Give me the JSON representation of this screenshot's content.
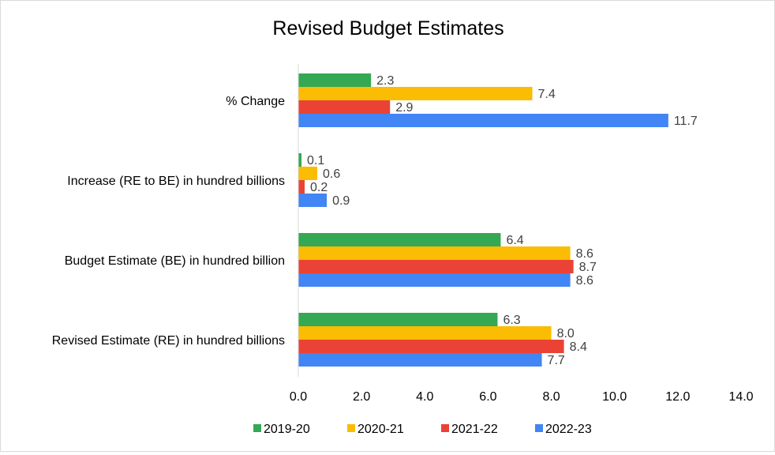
{
  "chart_data": {
    "type": "bar",
    "orientation": "horizontal",
    "title": "Revised Budget Estimates",
    "categories": [
      "% Change",
      "Increase (RE to BE) in hundred billions",
      "Budget Estimate (BE) in hundred billion",
      "Revised Estimate (RE) in hundred billions"
    ],
    "series": [
      {
        "name": "2019-20",
        "color": "#34A853",
        "values": [
          2.3,
          0.1,
          6.4,
          6.3
        ],
        "labels": [
          "2.3",
          "0.1",
          "6.4",
          "6.3"
        ]
      },
      {
        "name": "2020-21",
        "color": "#FBBC04",
        "values": [
          7.4,
          0.6,
          8.6,
          8.0
        ],
        "labels": [
          "7.4",
          "0.6",
          "8.6",
          "8.0"
        ]
      },
      {
        "name": "2021-22",
        "color": "#EA4335",
        "values": [
          2.9,
          0.2,
          8.7,
          8.4
        ],
        "labels": [
          "2.9",
          "0.2",
          "8.7",
          "8.4"
        ]
      },
      {
        "name": "2022-23",
        "color": "#4285F4",
        "values": [
          11.7,
          0.9,
          8.6,
          7.7
        ],
        "labels": [
          "11.7",
          "0.9",
          "8.6",
          "7.7"
        ]
      }
    ],
    "xlim": [
      0,
      14
    ],
    "xticks": [
      "0.0",
      "2.0",
      "4.0",
      "6.0",
      "8.0",
      "10.0",
      "12.0",
      "14.0"
    ],
    "grid": false,
    "legend": "bottom"
  }
}
